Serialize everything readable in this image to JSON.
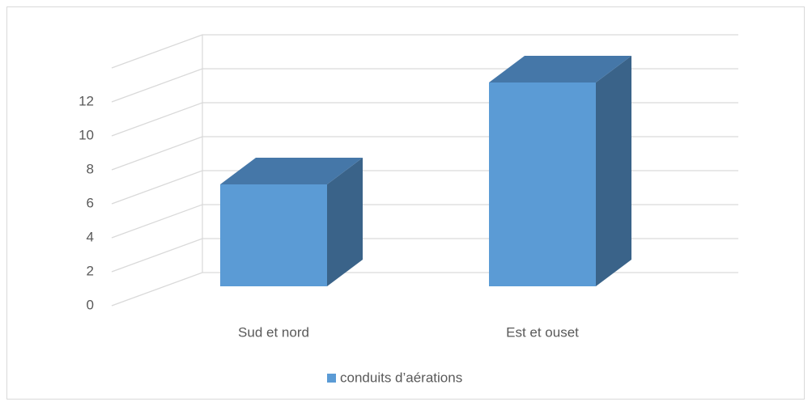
{
  "chart_data": {
    "type": "bar3d",
    "categories": [
      "Sud et nord",
      "Est et ouset"
    ],
    "series": [
      {
        "name": "conduits d’aérations",
        "color": "#5b9bd5",
        "values": [
          6,
          12
        ]
      }
    ],
    "ylim": [
      0,
      14
    ],
    "yticks": [
      0,
      2,
      4,
      6,
      8,
      10,
      12
    ],
    "grid": true,
    "legend": "bottom"
  }
}
